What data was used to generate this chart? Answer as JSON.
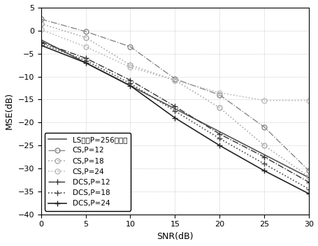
{
  "snr": [
    0,
    5,
    10,
    15,
    20,
    25,
    30
  ],
  "title": "",
  "xlabel": "SNR(dB)",
  "ylabel": "MSE(dB)",
  "ylim": [
    -40,
    5
  ],
  "xlim": [
    0,
    30
  ],
  "yticks": [
    5,
    0,
    -5,
    -10,
    -15,
    -20,
    -25,
    -30,
    -35,
    -40
  ],
  "xticks": [
    0,
    5,
    10,
    15,
    20,
    25,
    30
  ],
  "LS": [
    -2.0,
    -7.0,
    -12.0,
    -17.0,
    -22.0,
    -27.0,
    -32.0
  ],
  "CS_P12": [
    2.5,
    -0.2,
    -3.5,
    -10.5,
    -14.0,
    -21.0,
    -30.5
  ],
  "CS_P18": [
    1.5,
    -1.5,
    -7.5,
    -10.8,
    -16.8,
    -25.0,
    -31.8
  ],
  "CS_P24": [
    0.2,
    -3.5,
    -8.0,
    -10.8,
    -13.5,
    -15.2,
    -15.2
  ],
  "DCS_P12": [
    -2.5,
    -6.0,
    -10.8,
    -16.5,
    -22.5,
    -27.5,
    -33.0
  ],
  "DCS_P18": [
    -2.8,
    -6.5,
    -11.5,
    -17.5,
    -23.5,
    -29.0,
    -34.5
  ],
  "DCS_P24": [
    -3.2,
    -7.0,
    -12.0,
    -19.0,
    -25.0,
    -30.5,
    -35.5
  ],
  "legend_labels": [
    "LS使用P=256个导频",
    "CS,P=12",
    "CS,P=18",
    "CS,P=24",
    "DCS,P=12",
    "DCS,P=18",
    "DCS,P=24"
  ]
}
